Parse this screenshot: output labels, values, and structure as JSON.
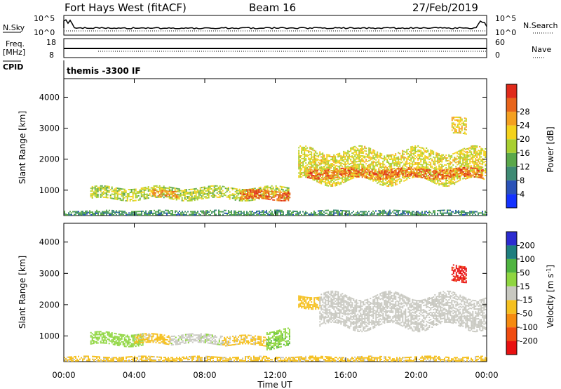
{
  "header": {
    "station": "Fort Hays West (fitACF)",
    "beam": "Beam 16",
    "date": "27/Feb/2019"
  },
  "aux_panels": {
    "noise": {
      "left_label": "N.Sky",
      "left_ticks": [
        "10^5",
        "10^0"
      ],
      "right_label": "N.Search",
      "right_ticks": [
        "10^5",
        "10^0"
      ]
    },
    "freq": {
      "left_label_1": "Freq.",
      "left_label_2": "[MHz]",
      "left_ticks": [
        "18",
        "8"
      ],
      "right_label": "Nave",
      "right_ticks": [
        "60",
        "0"
      ]
    },
    "cpid": {
      "label": "CPID",
      "text": "themis -3300 IF"
    }
  },
  "colorbars": {
    "power": {
      "label": "Power [dB]",
      "ticks": [
        "4",
        "8",
        "12",
        "16",
        "20",
        "24",
        "28"
      ],
      "colors": [
        "#1432ff",
        "#2a52b8",
        "#3e8a74",
        "#5aa84a",
        "#a8cf30",
        "#f4d21c",
        "#f4a020",
        "#e8641a",
        "#e02a1a"
      ]
    },
    "velocity": {
      "label_main": "Velocity [m s",
      "label_exp": "-1",
      "label_end": "]",
      "ticks": [
        "-200",
        "-100",
        "-50",
        "-15",
        "15",
        "50",
        "100",
        "200"
      ],
      "colors": [
        "#e81010",
        "#f04c10",
        "#f58a10",
        "#f5c020",
        "#c8c8c0",
        "#8fd640",
        "#4fb440",
        "#1e7e7e",
        "#2b2bd0"
      ]
    }
  },
  "chart_data": [
    {
      "type": "heatmap",
      "variable": "power",
      "ylabel": "Slant Range [km]",
      "yticks": [
        1000,
        2000,
        3000,
        4000
      ],
      "ylim": [
        180,
        4600
      ],
      "xlim": [
        0,
        24
      ],
      "units": "dB",
      "regions": [
        {
          "t0": 1.5,
          "t1": 12.8,
          "r_lo": 700,
          "r_hi": 1100,
          "value": 16
        },
        {
          "t0": 5.0,
          "t1": 6.5,
          "r_lo": 800,
          "r_hi": 1000,
          "value": 24
        },
        {
          "t0": 10.0,
          "t1": 12.8,
          "r_lo": 700,
          "r_hi": 1000,
          "value": 26
        },
        {
          "t0": 13.3,
          "t1": 23.9,
          "r_lo": 1300,
          "r_hi": 2300,
          "value": 18
        },
        {
          "t0": 13.8,
          "t1": 23.8,
          "r_lo": 1400,
          "r_hi": 1700,
          "value": 26
        },
        {
          "t0": 22.0,
          "t1": 22.8,
          "r_lo": 2800,
          "r_hi": 3300,
          "value": 20
        },
        {
          "t0": 0.0,
          "t1": 24.0,
          "r_lo": 200,
          "r_hi": 350,
          "value": 10
        }
      ]
    },
    {
      "type": "heatmap",
      "variable": "velocity",
      "ylabel": "Slant Range [km]",
      "xlabel": "Time UT",
      "yticks": [
        1000,
        2000,
        3000,
        4000
      ],
      "ylim": [
        180,
        4600
      ],
      "xlim": [
        0,
        24
      ],
      "xticks": [
        "00:00",
        "04:00",
        "08:00",
        "12:00",
        "16:00",
        "20:00",
        "00:00"
      ],
      "units": "m/s",
      "regions": [
        {
          "t0": 1.5,
          "t1": 4.5,
          "r_lo": 700,
          "r_hi": 1100,
          "value": 30
        },
        {
          "t0": 4.0,
          "t1": 6.0,
          "r_lo": 750,
          "r_hi": 1050,
          "value": -25
        },
        {
          "t0": 6.0,
          "t1": 9.0,
          "r_lo": 750,
          "r_hi": 1050,
          "value": 5
        },
        {
          "t0": 9.0,
          "t1": 11.5,
          "r_lo": 700,
          "r_hi": 1000,
          "value": -25
        },
        {
          "t0": 11.5,
          "t1": 12.8,
          "r_lo": 650,
          "r_hi": 1200,
          "value": 40
        },
        {
          "t0": 13.3,
          "t1": 14.5,
          "r_lo": 1900,
          "r_hi": 2300,
          "value": -35
        },
        {
          "t0": 14.5,
          "t1": 23.9,
          "r_lo": 1300,
          "r_hi": 2300,
          "value": 0
        },
        {
          "t0": 22.0,
          "t1": 22.8,
          "r_lo": 2800,
          "r_hi": 3300,
          "value": -210
        },
        {
          "t0": 0.0,
          "t1": 24.0,
          "r_lo": 200,
          "r_hi": 350,
          "value": -25
        }
      ]
    }
  ]
}
